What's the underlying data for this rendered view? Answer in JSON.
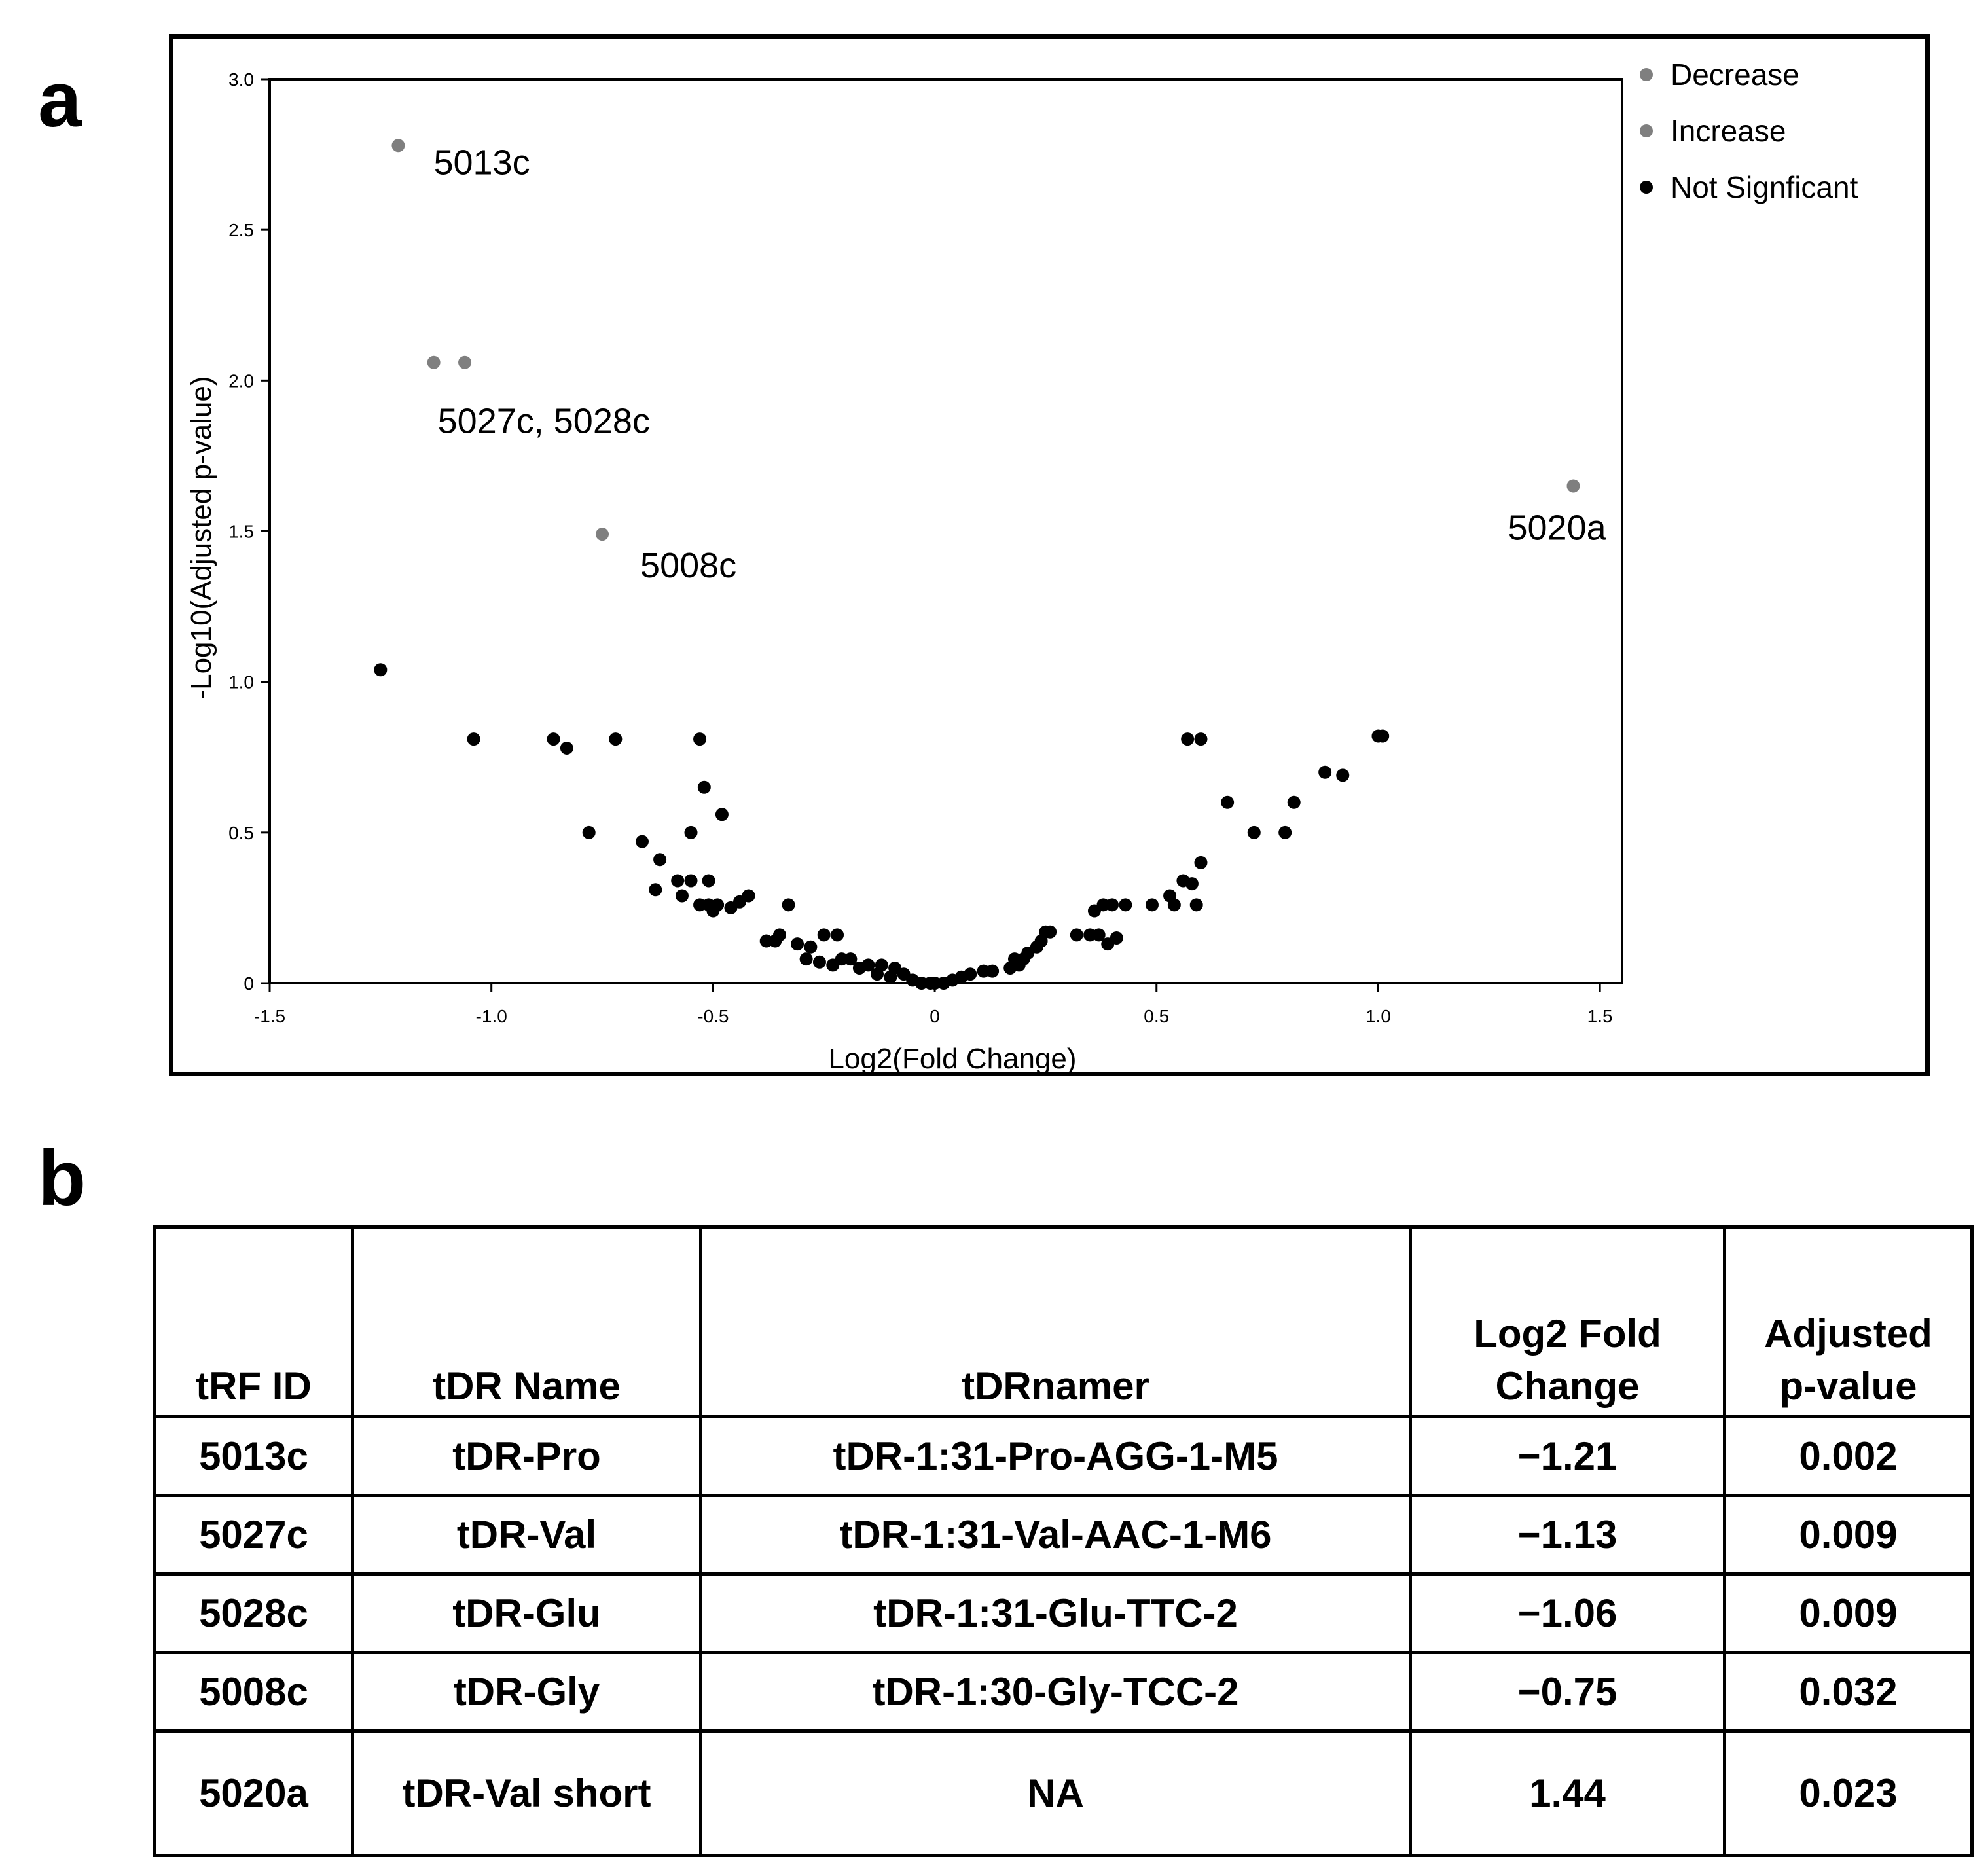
{
  "panels": {
    "a": "a",
    "b": "b"
  },
  "chart_data": {
    "type": "scatter",
    "title": "",
    "xlabel": "Log2(Fold Change)",
    "ylabel": "-Log10(Adjusted p-value)",
    "xlim": [
      -1.5,
      1.55
    ],
    "ylim": [
      0,
      3.0
    ],
    "xticks": [
      -1.5,
      -1.0,
      -0.5,
      0,
      0.5,
      1.0,
      1.5
    ],
    "xtick_labels": [
      "-1.5",
      "-1.0",
      "-0.5",
      "0",
      "0.5",
      "1.0",
      "1.5"
    ],
    "yticks": [
      0,
      0.5,
      1.0,
      1.5,
      2.0,
      2.5,
      3.0
    ],
    "ytick_labels": [
      "0",
      "0.5",
      "1.0",
      "1.5",
      "2.0",
      "2.5",
      "3.0"
    ],
    "grid": false,
    "legend_position": "top-right outside plot",
    "legend": [
      {
        "label": "Decrease",
        "color": "#7f7f7f"
      },
      {
        "label": "Increase",
        "color": "#7f7f7f"
      },
      {
        "label": "Not Signficant",
        "color": "#000000"
      }
    ],
    "series": [
      {
        "name": "Decrease",
        "color": "#7f7f7f",
        "x": [
          -1.21,
          -1.13,
          -1.06,
          -0.75
        ],
        "y": [
          2.78,
          2.06,
          2.06,
          1.49
        ]
      },
      {
        "name": "Increase",
        "color": "#7f7f7f",
        "x": [
          1.44
        ],
        "y": [
          1.65
        ]
      },
      {
        "name": "Not Signficant",
        "color": "#000000",
        "x": [
          -1.25,
          -1.04,
          -0.86,
          -0.83,
          -0.72,
          -0.78,
          -0.53,
          -0.52,
          -0.48,
          -0.55,
          -0.66,
          -0.62,
          -0.58,
          -0.55,
          -0.63,
          -0.57,
          -0.51,
          -0.53,
          -0.49,
          -0.46,
          -0.44,
          -0.42,
          -0.51,
          -0.5,
          -0.38,
          -0.36,
          -0.33,
          -0.35,
          -0.31,
          -0.29,
          -0.25,
          -0.22,
          -0.28,
          -0.26,
          -0.23,
          -0.21,
          -0.19,
          -0.17,
          -0.15,
          -0.13,
          -0.12,
          -0.1,
          -0.09,
          -0.07,
          -0.05,
          -0.03,
          -0.01,
          0.0,
          0.02,
          0.04,
          0.06,
          0.08,
          0.11,
          0.13,
          0.17,
          0.19,
          0.18,
          0.2,
          0.21,
          0.23,
          0.24,
          0.25,
          0.26,
          0.32,
          0.35,
          0.37,
          0.38,
          0.4,
          0.43,
          0.36,
          0.41,
          0.39,
          0.49,
          0.53,
          0.54,
          0.56,
          0.58,
          0.59,
          0.6,
          0.57,
          0.6,
          0.66,
          0.72,
          0.79,
          0.81,
          0.88,
          0.92,
          1.0,
          1.01
        ],
        "y": [
          1.04,
          0.81,
          0.81,
          0.78,
          0.81,
          0.5,
          0.81,
          0.65,
          0.56,
          0.5,
          0.47,
          0.41,
          0.34,
          0.34,
          0.31,
          0.29,
          0.34,
          0.26,
          0.26,
          0.25,
          0.27,
          0.29,
          0.26,
          0.24,
          0.14,
          0.14,
          0.26,
          0.16,
          0.13,
          0.08,
          0.16,
          0.16,
          0.12,
          0.07,
          0.06,
          0.08,
          0.08,
          0.05,
          0.06,
          0.03,
          0.06,
          0.02,
          0.05,
          0.03,
          0.01,
          0.0,
          0.0,
          0.0,
          0.0,
          0.01,
          0.02,
          0.03,
          0.04,
          0.04,
          0.05,
          0.06,
          0.08,
          0.08,
          0.1,
          0.12,
          0.14,
          0.17,
          0.17,
          0.16,
          0.16,
          0.16,
          0.26,
          0.26,
          0.26,
          0.24,
          0.15,
          0.13,
          0.26,
          0.29,
          0.26,
          0.34,
          0.33,
          0.26,
          0.4,
          0.81,
          0.81,
          0.6,
          0.5,
          0.5,
          0.6,
          0.7,
          0.69,
          0.82,
          0.82
        ]
      }
    ],
    "annotations": [
      {
        "text": "5013c",
        "x": -1.21,
        "y": 2.78
      },
      {
        "text": "5027c, 5028c",
        "x": -1.13,
        "y": 2.06
      },
      {
        "text": "5008c",
        "x": -0.75,
        "y": 1.49
      },
      {
        "text": "5020a",
        "x": 1.44,
        "y": 1.65
      }
    ]
  },
  "table": {
    "headers": [
      {
        "line1": "",
        "line2": "tRF ID"
      },
      {
        "line1": "",
        "line2": "tDR Name"
      },
      {
        "line1": "",
        "line2": "tDRnamer"
      },
      {
        "line1": "Log2 Fold",
        "line2": "Change"
      },
      {
        "line1": "Adjusted",
        "line2": "p-value"
      }
    ],
    "rows": [
      [
        "5013c",
        "tDR-Pro",
        "tDR-1:31-Pro-AGG-1-M5",
        "−1.21",
        "0.002"
      ],
      [
        "5027c",
        "tDR-Val",
        "tDR-1:31-Val-AAC-1-M6",
        "−1.13",
        "0.009"
      ],
      [
        "5028c",
        "tDR-Glu",
        "tDR-1:31-Glu-TTC-2",
        "−1.06",
        "0.009"
      ],
      [
        "5008c",
        "tDR-Gly",
        "tDR-1:30-Gly-TCC-2",
        "−0.75",
        "0.032"
      ],
      [
        "5020a",
        "tDR-Val short",
        "NA",
        "1.44",
        "0.023"
      ]
    ]
  }
}
